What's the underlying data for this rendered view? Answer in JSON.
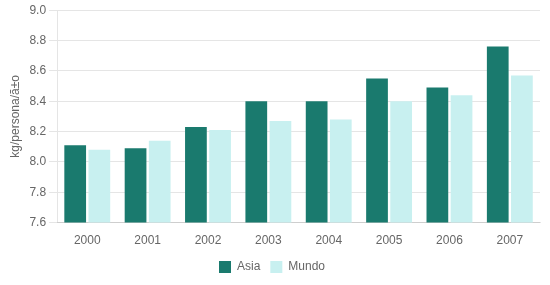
{
  "chart_data": {
    "type": "bar",
    "categories": [
      "2000",
      "2001",
      "2002",
      "2003",
      "2004",
      "2005",
      "2006",
      "2007"
    ],
    "series": [
      {
        "name": "Asia",
        "color": "#1a7a6e",
        "values": [
          8.11,
          8.09,
          8.23,
          8.4,
          8.4,
          8.55,
          8.49,
          8.76
        ]
      },
      {
        "name": "Mundo",
        "color": "#c8f0f0",
        "values": [
          8.08,
          8.14,
          8.21,
          8.27,
          8.28,
          8.4,
          8.44,
          8.57
        ]
      }
    ],
    "y_label": "kg/persona/ã±o",
    "ylim": [
      7.6,
      9.0
    ],
    "yticks": [
      7.6,
      7.8,
      {
        "value": 8.0,
        "label": "8.0"
      },
      8.2,
      8.4,
      8.6,
      8.8,
      {
        "value": 9.0,
        "label": "9.0"
      }
    ],
    "grid": true,
    "legend": "bottom"
  }
}
